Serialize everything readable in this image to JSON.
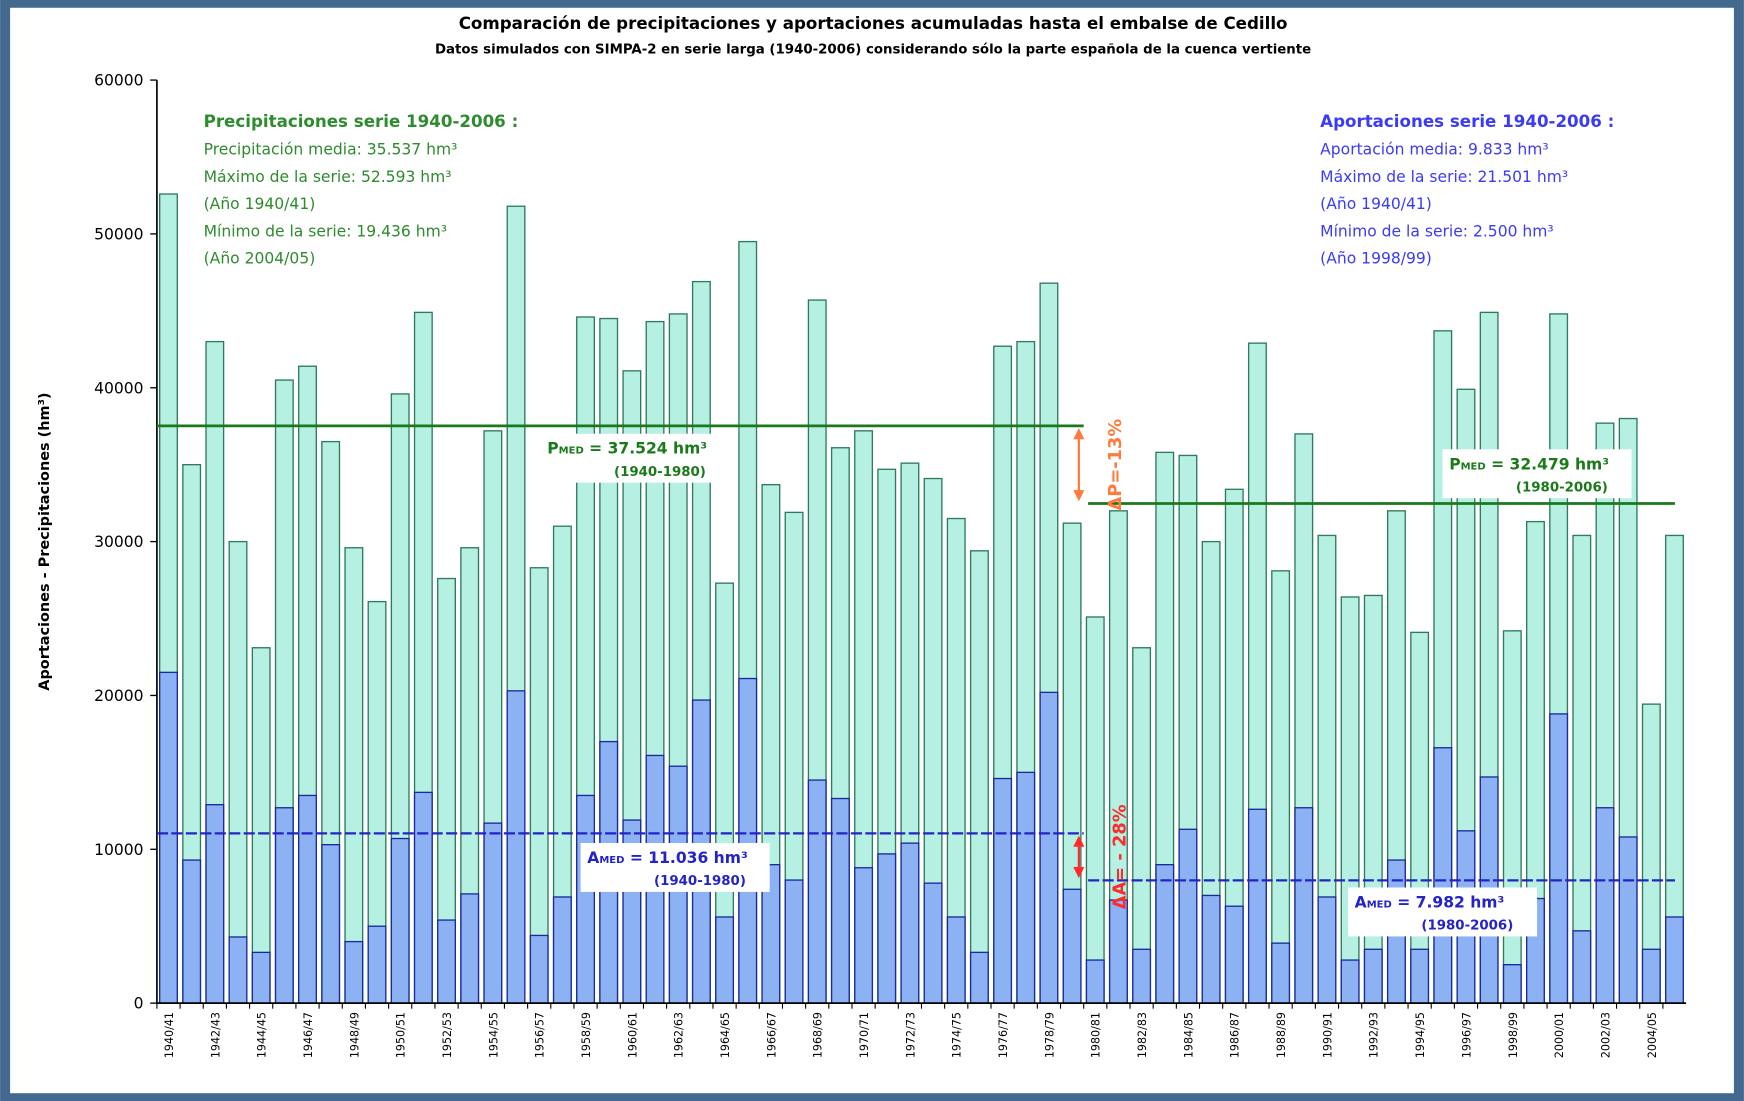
{
  "chart_data": {
    "type": "bar",
    "title": "Comparación de precipitaciones y aportaciones acumuladas hasta el embalse de Cedillo",
    "subtitle": "Datos simulados con SIMPA-2 en serie larga (1940-2006) considerando sólo la parte española de la cuenca vertiente",
    "y_label": "Aportaciones - Precipitaciones (hm³)",
    "categories": [
      "1940/41",
      null,
      "1942/43",
      null,
      "1944/45",
      null,
      "1946/47",
      null,
      "1948/49",
      null,
      "1950/51",
      null,
      "1952/53",
      null,
      "1954/55",
      null,
      "1956/57",
      null,
      "1958/59",
      null,
      "1960/61",
      null,
      "1962/63",
      null,
      "1964/65",
      null,
      "1966/67",
      null,
      "1968/69",
      null,
      "1970/71",
      null,
      "1972/73",
      null,
      "1974/75",
      null,
      "1976/77",
      null,
      "1978/79",
      null,
      "1980/81",
      null,
      "1982/83",
      null,
      "1984/85",
      null,
      "1986/87",
      null,
      "1988/89",
      null,
      "1990/91",
      null,
      "1992/93",
      null,
      "1994/95",
      null,
      "1996/97",
      null,
      "1998/99",
      null,
      "2000/01",
      null,
      "2002/03",
      null,
      "2004/05",
      null
    ],
    "series": [
      {
        "color": "#b6f0e2",
        "stroke": "#2d7a5c",
        "values": [
          52593,
          35000,
          43000,
          30000,
          23100,
          40500,
          41400,
          36500,
          29600,
          26100,
          39600,
          44900,
          27600,
          29600,
          37200,
          51800,
          28300,
          31000,
          44600,
          44500,
          41100,
          44300,
          44800,
          46900,
          27300,
          49500,
          33700,
          31900,
          45700,
          36100,
          37200,
          34700,
          35100,
          34100,
          31500,
          29400,
          42700,
          43000,
          46800,
          31200,
          25100,
          32000,
          23100,
          35800,
          35600,
          30000,
          33400,
          42900,
          28100,
          37000,
          30400,
          26400,
          26500,
          32000,
          24100,
          43700,
          39900,
          44900,
          24200,
          31300,
          44800,
          30400,
          37700,
          38000,
          19436,
          30400
        ]
      },
      {
        "color": "#8db2f4",
        "stroke": "#1a2a9a",
        "values": [
          21501,
          9300,
          12900,
          4300,
          3300,
          12700,
          13500,
          10300,
          4000,
          5000,
          10700,
          13700,
          5400,
          7100,
          11700,
          20300,
          4400,
          6900,
          13500,
          17000,
          11900,
          16100,
          15400,
          19700,
          5600,
          21100,
          9000,
          8000,
          14500,
          13300,
          8800,
          9700,
          10400,
          7800,
          5600,
          3300,
          14600,
          15000,
          20200,
          7400,
          2800,
          6700,
          3500,
          9000,
          11300,
          7000,
          6300,
          12600,
          3900,
          12700,
          6900,
          2800,
          3500,
          9300,
          3500,
          16600,
          11200,
          14700,
          2500,
          6800,
          18800,
          4700,
          12700,
          10800,
          3500,
          5600
        ]
      }
    ],
    "ylim": [
      0,
      60000
    ],
    "yticks": [
      0,
      10000,
      20000,
      30000,
      40000,
      50000,
      60000
    ],
    "grid": false,
    "precip_summary": {
      "color": "#2e8b2e",
      "heading": "Precipitaciones serie 1940-2006 :",
      "lines": [
        "Precipitación media: 35.537 hm³",
        "Máximo de la serie: 52.593 hm³",
        "(Año 1940/41)",
        "Mínimo de la serie: 19.436 hm³",
        "(Año 2004/05)"
      ]
    },
    "runoff_summary": {
      "color": "#3b3bf5",
      "heading": "Aportaciones serie 1940-2006 :",
      "lines": [
        "Aportación media: 9.833 hm³",
        "Máximo de la serie: 21.501 hm³",
        "(Año 1940/41)",
        "Mínimo de la serie: 2.500 hm³",
        "(Año 1998/99)"
      ]
    },
    "mean_lines": [
      {
        "value": 37524,
        "color": "#1a7a1a",
        "symbol": "P",
        "sub": "MED",
        "text": " = 37.524 hm³",
        "period": "(1940-1980)"
      },
      {
        "value": 32479,
        "color": "#1a7a1a",
        "symbol": "P",
        "sub": "MED",
        "text": " = 32.479 hm³",
        "period": "(1980-2006)"
      },
      {
        "value": 11036,
        "color": "#2323c8",
        "symbol": "A",
        "sub": "MED",
        "text": " = 11.036 hm³",
        "period": "(1940-1980)"
      },
      {
        "value": 7982,
        "color": "#2323c8",
        "symbol": "A",
        "sub": "MED",
        "text": " = 7.982 hm³",
        "period": "(1980-2006)"
      }
    ],
    "deltas": [
      {
        "label": "ΔP=-13%",
        "color": "#ff7a3c"
      },
      {
        "label": "ΔA= - 28%",
        "color": "#ff2a2a"
      }
    ]
  }
}
